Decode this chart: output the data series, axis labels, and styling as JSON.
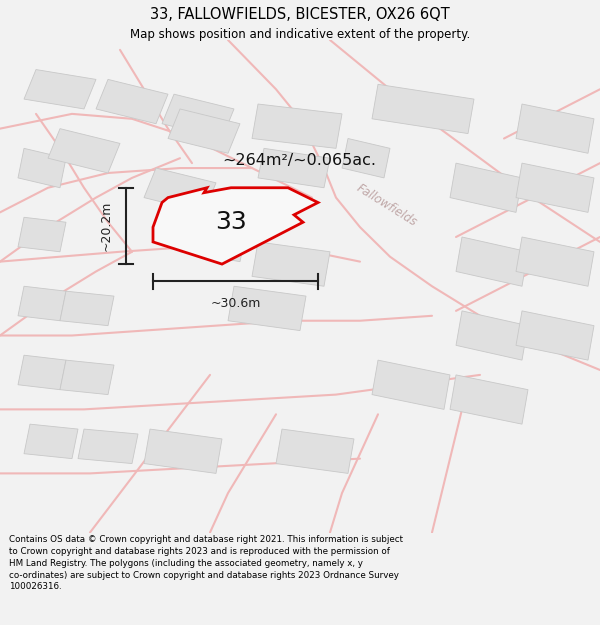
{
  "title_line1": "33, FALLOWFIELDS, BICESTER, OX26 6QT",
  "title_line2": "Map shows position and indicative extent of the property.",
  "footer_text": "Contains OS data © Crown copyright and database right 2021. This information is subject to Crown copyright and database rights 2023 and is reproduced with the permission of HM Land Registry. The polygons (including the associated geometry, namely x, y co-ordinates) are subject to Crown copyright and database rights 2023 Ordnance Survey 100026316.",
  "area_text": "~264m²/~0.065ac.",
  "label_text": "33",
  "width_label": "~30.6m",
  "height_label": "~20.2m",
  "road_label": "Fallowfields",
  "bg_color": "#f2f2f2",
  "map_bg": "#ffffff",
  "plot_color_edge": "#dd0000",
  "road_color": "#f0b8b8",
  "road_outline": "#e8a0a0",
  "building_color": "#e0e0e0",
  "building_edge": "#c8c8c8",
  "dim_color": "#222222",
  "title_color": "#000000",
  "footer_color": "#000000",
  "road_label_color": "#c0a8a8"
}
